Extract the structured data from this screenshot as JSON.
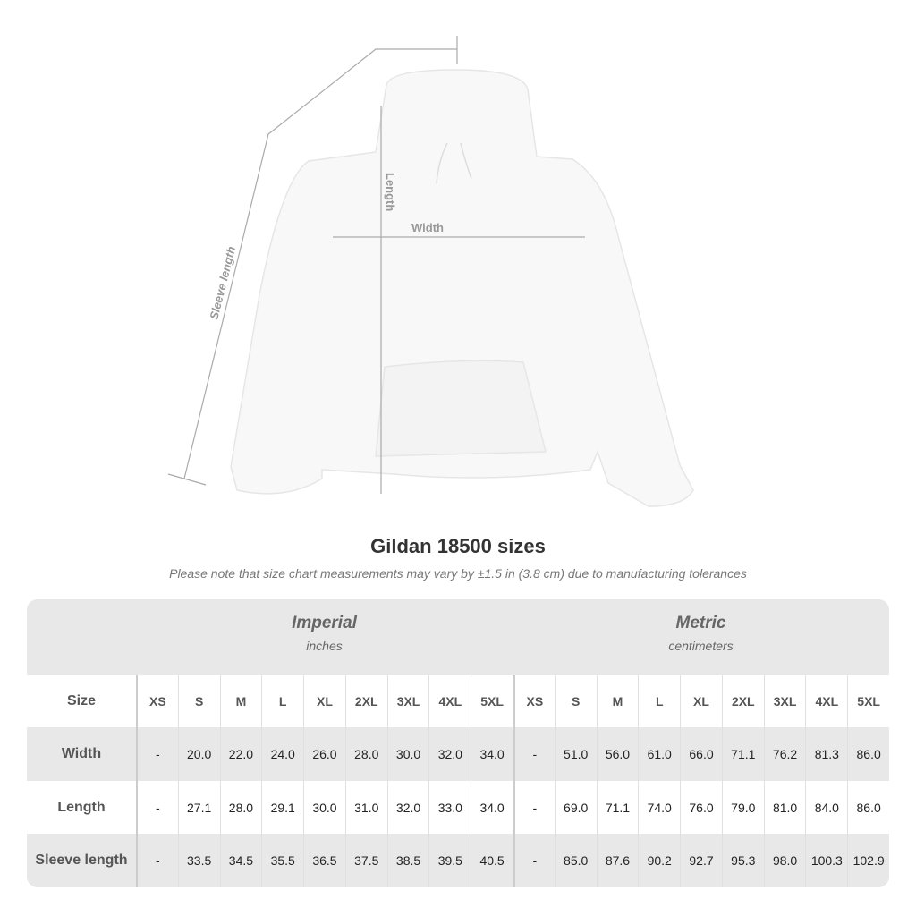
{
  "illustration": {
    "labels": {
      "length": "Length",
      "width": "Width",
      "sleeve": "Sleeve length"
    },
    "garment_color": "#f8f8f8"
  },
  "title": "Gildan 18500 sizes",
  "note": "Please note that size chart measurements may vary by ±1.5 in (3.8 cm) due to manufacturing tolerances",
  "table": {
    "imperial": {
      "name": "Imperial",
      "unit": "inches"
    },
    "metric": {
      "name": "Metric",
      "unit": "centimeters"
    },
    "size_label": "Size",
    "sizes": [
      "XS",
      "S",
      "M",
      "L",
      "XL",
      "2XL",
      "3XL",
      "4XL",
      "5XL"
    ],
    "rows": [
      {
        "label": "Width",
        "imperial": [
          "-",
          "20.0",
          "22.0",
          "24.0",
          "26.0",
          "28.0",
          "30.0",
          "32.0",
          "34.0"
        ],
        "metric": [
          "-",
          "51.0",
          "56.0",
          "61.0",
          "66.0",
          "71.1",
          "76.2",
          "81.3",
          "86.0"
        ]
      },
      {
        "label": "Length",
        "imperial": [
          "-",
          "27.1",
          "28.0",
          "29.1",
          "30.0",
          "31.0",
          "32.0",
          "33.0",
          "34.0"
        ],
        "metric": [
          "-",
          "69.0",
          "71.1",
          "74.0",
          "76.0",
          "79.0",
          "81.0",
          "84.0",
          "86.0"
        ]
      },
      {
        "label": "Sleeve length",
        "imperial": [
          "-",
          "33.5",
          "34.5",
          "35.5",
          "36.5",
          "37.5",
          "38.5",
          "39.5",
          "40.5"
        ],
        "metric": [
          "-",
          "85.0",
          "87.6",
          "90.2",
          "92.7",
          "95.3",
          "98.0",
          "100.3",
          "102.9"
        ]
      }
    ]
  }
}
